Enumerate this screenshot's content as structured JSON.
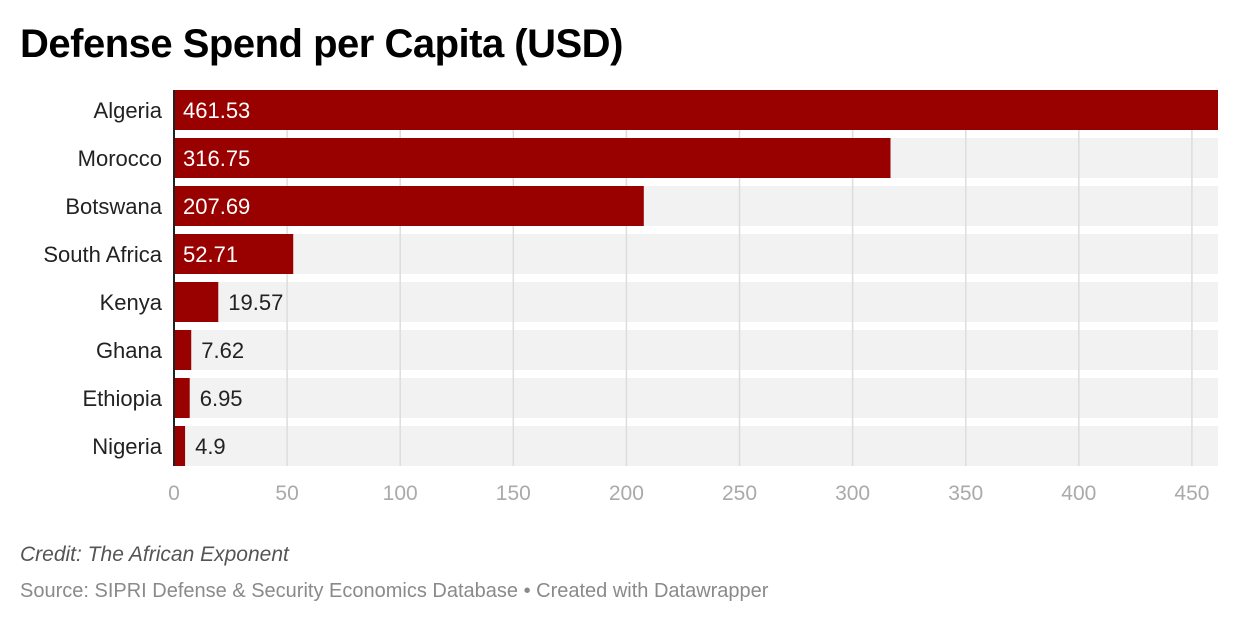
{
  "chart_data": {
    "type": "bar",
    "orientation": "horizontal",
    "title": "Defense Spend per Capita (USD)",
    "xlabel": "",
    "ylabel": "",
    "categories": [
      "Algeria",
      "Morocco",
      "Botswana",
      "South Africa",
      "Kenya",
      "Ghana",
      "Ethiopia",
      "Nigeria"
    ],
    "values": [
      461.53,
      316.75,
      207.69,
      52.71,
      19.57,
      7.62,
      6.95,
      4.9
    ],
    "value_labels": [
      "461.53",
      "316.75",
      "207.69",
      "52.71",
      "19.57",
      "7.62",
      "6.95",
      "4.9"
    ],
    "xlim": [
      0,
      461.53
    ],
    "xticks": [
      0,
      50,
      100,
      150,
      200,
      250,
      300,
      350,
      400,
      450
    ],
    "grid": true,
    "legend": "none",
    "colors": {
      "bar": "#990000",
      "track": "#f2f2f2",
      "grid": "#dddddd",
      "tick_label": "#aaaaaa",
      "value_inside": "#ffffff",
      "value_outside": "#222222",
      "category_label": "#222222"
    }
  },
  "footer": {
    "credit": "Credit: The African Exponent",
    "source": "Source: SIPRI Defense & Security Economics Database • Created with Datawrapper"
  }
}
